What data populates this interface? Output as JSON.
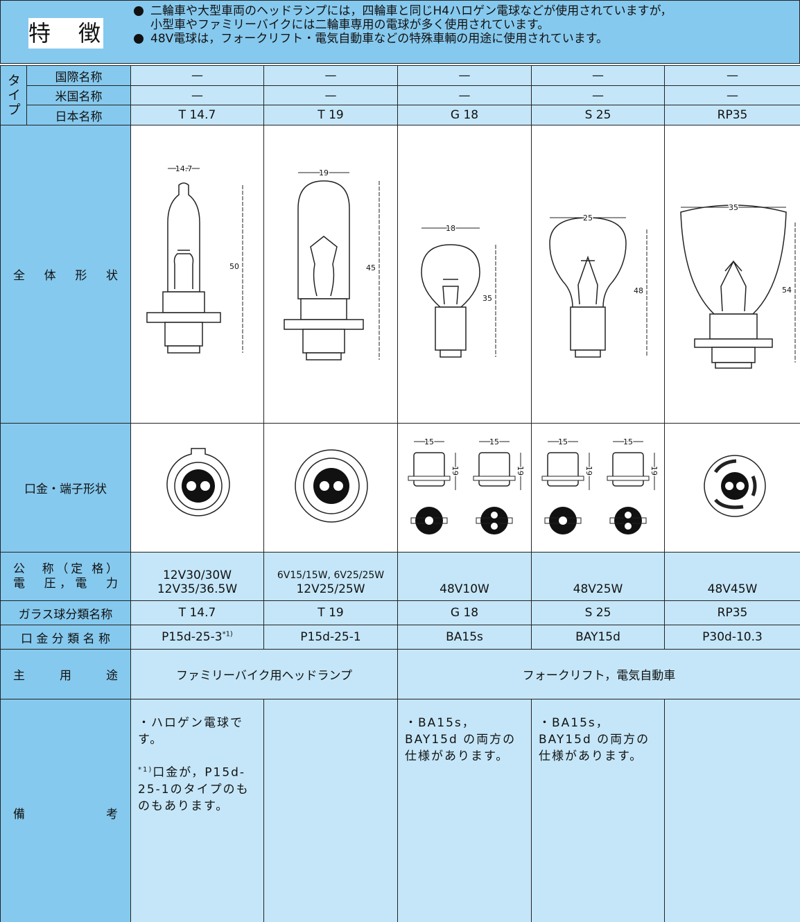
{
  "header": {
    "title": "特　徴",
    "bullets": [
      [
        "二輪車や大型車両のヘッドランプには，四輪車と同じH4ハロゲン電球などが使用されていますが，",
        "小型車やファミリーバイクには二輪車専用の電球が多く使用されています。"
      ],
      [
        "48V電球は，フォークリフト・電気自動車などの特殊車輌の用途に使用されています。"
      ]
    ]
  },
  "table": {
    "type_label": "タイプ",
    "type_rows": [
      "国際名称",
      "米国名称",
      "日本名称"
    ],
    "row_labels": {
      "shape": "全　体　形　状",
      "base": "口金・端子形状",
      "voltage": [
        "公　称（定 格）",
        "電　圧，電　力"
      ],
      "glass": "ガラス球分類名称",
      "base_class": "口 金 分 類 名 称",
      "use": "主　用　途",
      "notes": "備　考"
    },
    "columns": [
      {
        "international": "—",
        "us": "—",
        "japan": "T 14.7",
        "width_dim": "14.7",
        "height_dim": "50",
        "voltage": [
          "12V30/30W",
          "12V35/36.5W"
        ],
        "glass": "T 14.7",
        "base_class": "P15d-25-3",
        "base_class_note": "*1)",
        "notes": [
          {
            "text": "・ハロゲン電球です。"
          },
          {
            "marker": "*1)",
            "text": "口金が，P15d-25-1のタイプのものもあります。"
          }
        ]
      },
      {
        "international": "—",
        "us": "—",
        "japan": "T 19",
        "width_dim": "19",
        "height_dim": "45",
        "voltage": [
          "6V15/15W, 6V25/25W",
          "12V25/25W"
        ],
        "glass": "T 19",
        "base_class": "P15d-25-1"
      },
      {
        "international": "—",
        "us": "—",
        "japan": "G 18",
        "width_dim": "18",
        "height_dim": "35",
        "base_dims": [
          "15",
          "19"
        ],
        "voltage": [
          "48V10W"
        ],
        "glass": "G 18",
        "base_class": "BA15s",
        "notes": [
          {
            "text": "・BA15s，BAY15d の両方の仕様があります。"
          }
        ]
      },
      {
        "international": "—",
        "us": "—",
        "japan": "S 25",
        "width_dim": "25",
        "height_dim": "48",
        "base_dims": [
          "15",
          "19"
        ],
        "voltage": [
          "48V25W"
        ],
        "glass": "S 25",
        "base_class": "BAY15d",
        "notes": [
          {
            "text": "・BA15s，BAY15d の両方の仕様があります。"
          }
        ]
      },
      {
        "international": "—",
        "us": "—",
        "japan": "RP35",
        "width_dim": "35",
        "height_dim": "54",
        "voltage": [
          "48V45W"
        ],
        "glass": "RP35",
        "base_class": "P30d-10.3"
      }
    ],
    "uses": [
      "ファミリーバイク用ヘッドランプ",
      "フォークリフト，電気自動車"
    ]
  }
}
